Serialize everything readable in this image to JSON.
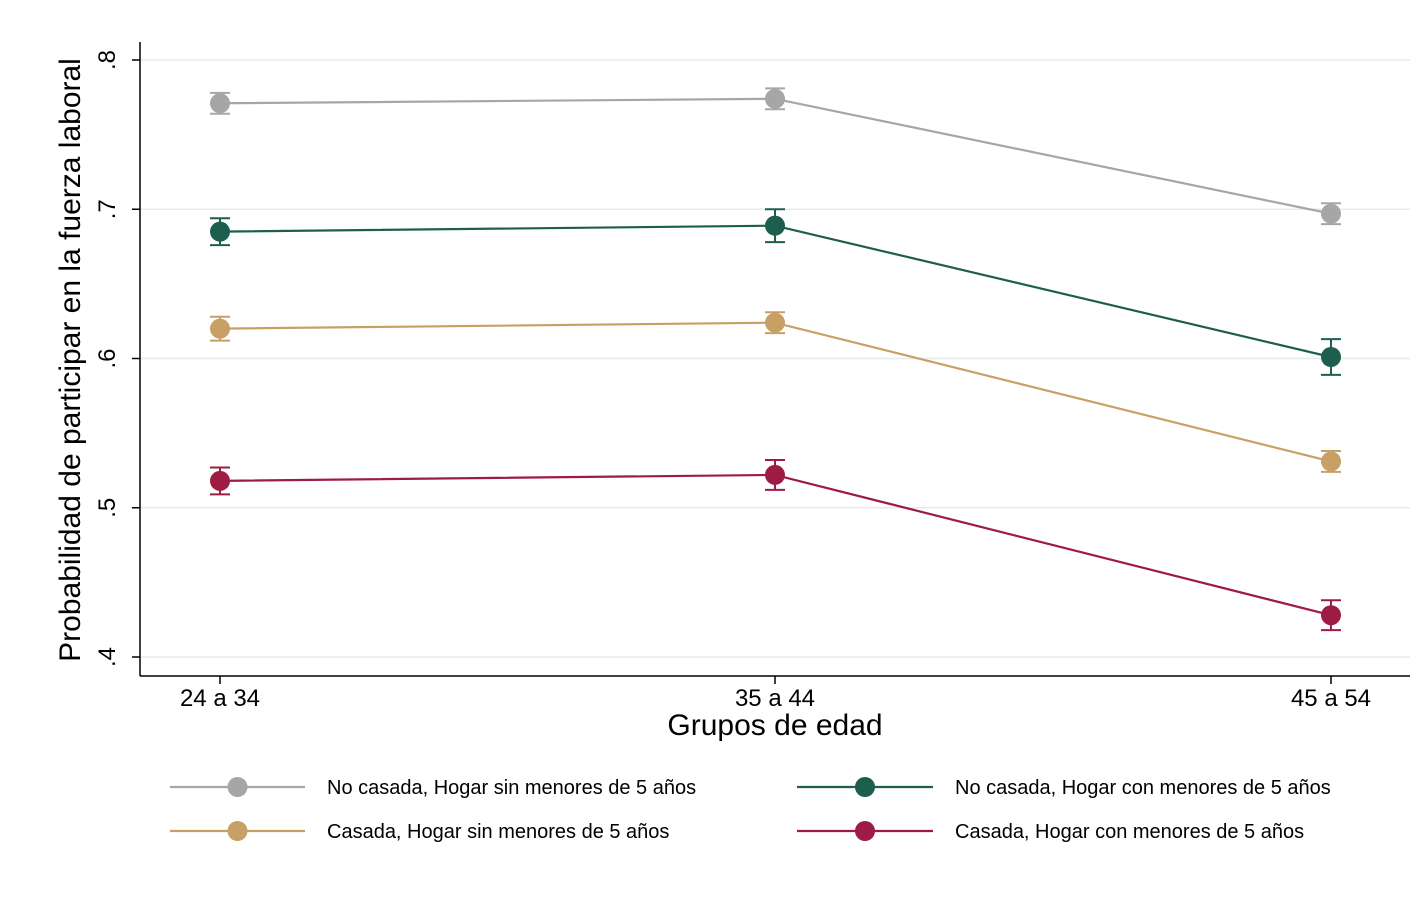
{
  "chart_data": {
    "type": "line",
    "title": "",
    "xlabel": "Grupos de edad",
    "ylabel": "Probabilidad de participar en la fuerza laboral",
    "categories": [
      "24 a 34",
      "35 a 44",
      "45 a 54"
    ],
    "ylim": [
      0.4,
      0.8
    ],
    "yticks": [
      0.4,
      0.5,
      0.6,
      0.7,
      0.8
    ],
    "ytick_labels": [
      ".4",
      ".5",
      ".6",
      ".7",
      ".8"
    ],
    "grid": true,
    "error_bars": true,
    "legend_position": "bottom",
    "series": [
      {
        "name": "No casada, Hogar sin menores de 5 años",
        "color": "#a6a6a6",
        "values": [
          0.771,
          0.774,
          0.697
        ],
        "ci_low": [
          0.764,
          0.767,
          0.69
        ],
        "ci_high": [
          0.778,
          0.781,
          0.704
        ]
      },
      {
        "name": "No casada, Hogar con menores de 5 años",
        "color": "#1e5e4e",
        "values": [
          0.685,
          0.689,
          0.601
        ],
        "ci_low": [
          0.676,
          0.678,
          0.589
        ],
        "ci_high": [
          0.694,
          0.7,
          0.613
        ]
      },
      {
        "name": "Casada, Hogar sin menores de 5 años",
        "color": "#c8a065",
        "values": [
          0.62,
          0.624,
          0.531
        ],
        "ci_low": [
          0.612,
          0.617,
          0.524
        ],
        "ci_high": [
          0.628,
          0.631,
          0.538
        ]
      },
      {
        "name": "Casada, Hogar con menores de 5 años",
        "color": "#9e1c44",
        "values": [
          0.518,
          0.522,
          0.428
        ],
        "ci_low": [
          0.509,
          0.512,
          0.418
        ],
        "ci_high": [
          0.527,
          0.532,
          0.438
        ]
      }
    ]
  }
}
